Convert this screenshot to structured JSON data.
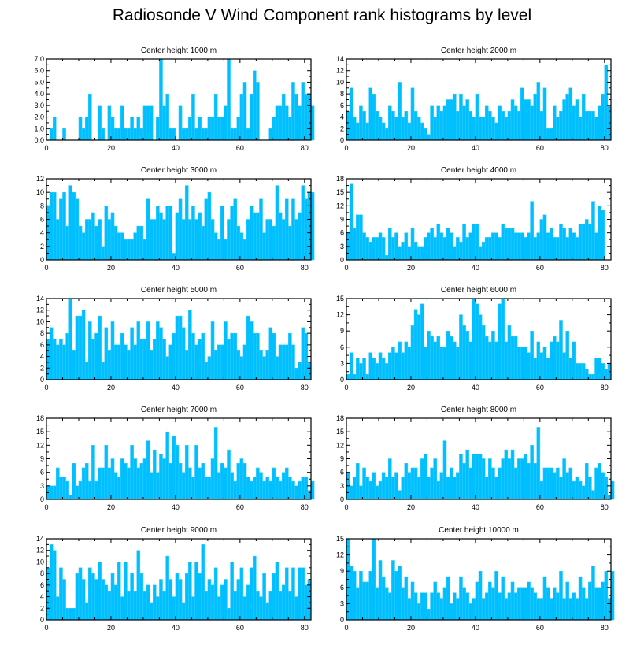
{
  "title": "Radiosonde V Wind Component rank histograms by level",
  "colors": {
    "bar": "#00BFFF",
    "bar_edge": "#33ccff",
    "axis": "#000000",
    "background": "#ffffff"
  },
  "chart_data": [
    {
      "type": "bar",
      "title": "Center height 1000 m",
      "xlim": [
        0,
        82
      ],
      "ylim": [
        0,
        7
      ],
      "xticks": [
        0,
        20,
        40,
        60,
        80
      ],
      "yticks": [
        0.0,
        1.0,
        2.0,
        3.0,
        4.0,
        5.0,
        6.0,
        7.0
      ],
      "ytick_decimals": 1,
      "values": [
        0,
        1,
        2,
        0,
        0,
        1,
        0,
        0,
        0,
        0,
        2,
        1,
        2,
        4,
        0,
        0,
        3,
        1,
        0,
        3,
        2,
        1,
        1,
        3,
        1,
        1,
        2,
        1,
        2,
        1,
        3,
        3,
        3,
        0,
        2,
        7,
        3,
        4,
        1,
        1,
        0,
        3,
        1,
        1,
        2,
        4,
        1,
        2,
        1,
        1,
        2,
        2,
        4,
        2,
        2,
        3,
        7,
        1,
        1,
        2,
        4,
        5,
        1,
        4,
        6,
        5,
        0,
        0,
        0,
        1,
        2,
        3,
        3,
        4,
        3,
        2,
        5,
        4,
        3,
        5,
        4,
        4,
        3
      ]
    },
    {
      "type": "bar",
      "title": "Center height 2000 m",
      "xlim": [
        0,
        82
      ],
      "ylim": [
        0,
        14
      ],
      "xticks": [
        0,
        20,
        40,
        60,
        80
      ],
      "yticks": [
        0,
        2,
        4,
        6,
        8,
        10,
        12,
        14
      ],
      "ytick_decimals": 0,
      "values": [
        5,
        9,
        4,
        3,
        6,
        5,
        3,
        9,
        8,
        5,
        4,
        3,
        2,
        6,
        5,
        4,
        10,
        4,
        5,
        3,
        9,
        5,
        4,
        3,
        2,
        1,
        6,
        4,
        6,
        5,
        6,
        7,
        7,
        8,
        5,
        8,
        6,
        7,
        5,
        4,
        8,
        4,
        4,
        6,
        5,
        4,
        3,
        6,
        5,
        4,
        5,
        7,
        6,
        5,
        9,
        7,
        7,
        6,
        8,
        10,
        5,
        9,
        2,
        2,
        6,
        4,
        5,
        7,
        8,
        9,
        6,
        7,
        4,
        8,
        5,
        5,
        5,
        4,
        6,
        8,
        13,
        6
      ]
    },
    {
      "type": "bar",
      "title": "Center height 3000 m",
      "xlim": [
        0,
        82
      ],
      "ylim": [
        0,
        12
      ],
      "xticks": [
        0,
        20,
        40,
        60,
        80
      ],
      "yticks": [
        0,
        2,
        4,
        6,
        8,
        10,
        12
      ],
      "ytick_decimals": 0,
      "values": [
        8,
        10,
        10,
        6,
        9,
        10,
        5,
        11,
        10,
        9,
        5,
        4,
        6,
        6,
        7,
        5,
        6,
        2,
        8,
        6,
        7,
        5,
        4,
        4,
        3,
        3,
        3,
        4,
        5,
        5,
        3,
        9,
        6,
        6,
        8,
        7,
        6,
        8,
        8,
        1,
        7,
        9,
        6,
        11,
        6,
        8,
        6,
        7,
        5,
        9,
        10,
        6,
        4,
        3,
        8,
        3,
        6,
        8,
        9,
        5,
        4,
        3,
        6,
        8,
        7,
        7,
        9,
        4,
        6,
        6,
        5,
        11,
        7,
        6,
        9,
        5,
        9,
        6,
        7,
        11,
        9,
        10,
        10
      ]
    },
    {
      "type": "bar",
      "title": "Center height 4000 m",
      "xlim": [
        0,
        82
      ],
      "ylim": [
        0,
        18
      ],
      "xticks": [
        0,
        20,
        40,
        60,
        80
      ],
      "yticks": [
        0,
        3,
        6,
        9,
        12,
        15,
        18
      ],
      "ytick_decimals": 0,
      "values": [
        6,
        17,
        7,
        10,
        10,
        6,
        5,
        4,
        5,
        5,
        6,
        5,
        1,
        7,
        5,
        6,
        3,
        4,
        6,
        3,
        7,
        4,
        3,
        3,
        5,
        6,
        7,
        5,
        8,
        6,
        5,
        7,
        6,
        3,
        5,
        4,
        8,
        5,
        6,
        8,
        8,
        3,
        4,
        5,
        5,
        6,
        6,
        5,
        8,
        7,
        7,
        7,
        6,
        6,
        6,
        5,
        6,
        13,
        5,
        6,
        9,
        10,
        6,
        7,
        5,
        5,
        8,
        7,
        5,
        7,
        6,
        5,
        8,
        8,
        9,
        8,
        13,
        6,
        12,
        11
      ]
    },
    {
      "type": "bar",
      "title": "Center height 5000 m",
      "xlim": [
        0,
        82
      ],
      "ylim": [
        0,
        14
      ],
      "xticks": [
        0,
        20,
        40,
        60,
        80
      ],
      "yticks": [
        0,
        2,
        4,
        6,
        8,
        10,
        12,
        14
      ],
      "ytick_decimals": 0,
      "values": [
        7,
        9,
        7,
        6,
        7,
        6,
        8,
        14,
        5,
        11,
        11,
        12,
        3,
        10,
        7,
        8,
        11,
        3,
        9,
        5,
        10,
        6,
        6,
        8,
        6,
        5,
        9,
        6,
        10,
        7,
        7,
        10,
        5,
        7,
        10,
        9,
        7,
        4,
        6,
        8,
        11,
        11,
        9,
        5,
        12,
        8,
        6,
        7,
        8,
        3,
        4,
        10,
        5,
        6,
        6,
        10,
        7,
        8,
        8,
        5,
        4,
        6,
        11,
        10,
        8,
        8,
        5,
        4,
        5,
        9,
        8,
        4,
        6,
        6,
        6,
        8,
        6,
        2,
        3,
        9,
        8,
        3
      ]
    },
    {
      "type": "bar",
      "title": "Center height 6000 m",
      "xlim": [
        0,
        82
      ],
      "ylim": [
        0,
        15
      ],
      "xticks": [
        0,
        20,
        40,
        60,
        80
      ],
      "yticks": [
        0,
        3,
        6,
        9,
        12,
        15
      ],
      "ytick_decimals": 0,
      "values": [
        1,
        5,
        1,
        4,
        3,
        4,
        1,
        5,
        4,
        3,
        5,
        4,
        3,
        5,
        6,
        5,
        7,
        5,
        7,
        6,
        10,
        13,
        12,
        14,
        6,
        9,
        8,
        7,
        8,
        6,
        6,
        9,
        8,
        7,
        6,
        12,
        10,
        9,
        7,
        15,
        14,
        12,
        10,
        8,
        7,
        9,
        7,
        14,
        15,
        7,
        10,
        8,
        8,
        6,
        6,
        6,
        5,
        9,
        4,
        7,
        5,
        6,
        4,
        7,
        8,
        7,
        11,
        5,
        9,
        4,
        7,
        3,
        3,
        3,
        2,
        1,
        1,
        4,
        4,
        3,
        2,
        3
      ]
    },
    {
      "type": "bar",
      "title": "Center height 7000 m",
      "xlim": [
        0,
        82
      ],
      "ylim": [
        0,
        18
      ],
      "xticks": [
        0,
        20,
        40,
        60,
        80
      ],
      "yticks": [
        0,
        3,
        6,
        9,
        12,
        15,
        18
      ],
      "ytick_decimals": 0,
      "values": [
        3,
        3,
        3,
        7,
        5,
        5,
        4,
        1,
        8,
        3,
        4,
        7,
        8,
        4,
        12,
        4,
        7,
        7,
        12,
        7,
        9,
        6,
        5,
        9,
        8,
        7,
        12,
        9,
        7,
        8,
        9,
        13,
        6,
        11,
        6,
        10,
        9,
        15,
        8,
        14,
        12,
        8,
        6,
        12,
        7,
        5,
        12,
        7,
        8,
        5,
        5,
        9,
        16,
        6,
        8,
        7,
        11,
        6,
        4,
        8,
        9,
        8,
        5,
        4,
        5,
        7,
        6,
        4,
        5,
        4,
        7,
        5,
        4,
        6,
        7,
        5,
        4,
        3,
        4,
        5,
        5,
        2,
        4
      ]
    },
    {
      "type": "bar",
      "title": "Center height 8000 m",
      "xlim": [
        0,
        82
      ],
      "ylim": [
        0,
        18
      ],
      "xticks": [
        0,
        20,
        40,
        60,
        80
      ],
      "yticks": [
        0,
        3,
        6,
        9,
        12,
        15,
        18
      ],
      "ytick_decimals": 0,
      "values": [
        6,
        3,
        5,
        8,
        3,
        7,
        5,
        4,
        6,
        3,
        4,
        6,
        5,
        9,
        5,
        6,
        2,
        5,
        8,
        6,
        7,
        7,
        5,
        9,
        10,
        5,
        7,
        9,
        4,
        6,
        13,
        5,
        7,
        5,
        6,
        10,
        8,
        11,
        7,
        10,
        10,
        10,
        9,
        5,
        9,
        7,
        5,
        7,
        9,
        11,
        9,
        11,
        7,
        9,
        9,
        10,
        8,
        12,
        8,
        16,
        4,
        7,
        7,
        7,
        6,
        7,
        5,
        9,
        6,
        7,
        4,
        5,
        4,
        3,
        8,
        5,
        2,
        7,
        8,
        6,
        5,
        1,
        4
      ]
    },
    {
      "type": "bar",
      "title": "Center height 9000 m",
      "xlim": [
        0,
        82
      ],
      "ylim": [
        0,
        14
      ],
      "xticks": [
        0,
        20,
        40,
        60,
        80
      ],
      "yticks": [
        0,
        2,
        4,
        6,
        8,
        10,
        12,
        14
      ],
      "ytick_decimals": 0,
      "values": [
        9,
        13,
        12,
        4,
        9,
        7,
        2,
        2,
        2,
        8,
        9,
        7,
        3,
        9,
        8,
        7,
        10,
        7,
        6,
        5,
        8,
        6,
        10,
        4,
        10,
        5,
        8,
        5,
        12,
        8,
        5,
        6,
        3,
        6,
        4,
        7,
        5,
        11,
        7,
        4,
        8,
        7,
        3,
        8,
        10,
        4,
        10,
        8,
        13,
        5,
        7,
        6,
        9,
        4,
        6,
        7,
        2,
        10,
        5,
        7,
        9,
        4,
        6,
        9,
        11,
        5,
        4,
        8,
        3,
        5,
        8,
        10,
        5,
        6,
        9,
        5,
        9,
        4,
        9,
        9,
        6,
        7
      ]
    },
    {
      "type": "bar",
      "title": "Center height 10000 m",
      "xlim": [
        0,
        82
      ],
      "ylim": [
        0,
        15
      ],
      "xticks": [
        0,
        20,
        40,
        60,
        80
      ],
      "yticks": [
        0,
        3,
        6,
        9,
        12,
        15
      ],
      "ytick_decimals": 0,
      "values": [
        15,
        10,
        9,
        6,
        9,
        7,
        7,
        9,
        15,
        6,
        11,
        8,
        6,
        5,
        11,
        9,
        10,
        6,
        8,
        4,
        7,
        5,
        3,
        5,
        5,
        2,
        5,
        7,
        5,
        4,
        6,
        8,
        3,
        5,
        4,
        8,
        6,
        5,
        3,
        4,
        7,
        9,
        4,
        5,
        7,
        6,
        9,
        5,
        8,
        4,
        5,
        7,
        5,
        6,
        6,
        6,
        7,
        6,
        5,
        4,
        4,
        8,
        6,
        4,
        6,
        5,
        9,
        4,
        7,
        4,
        5,
        4,
        8,
        6,
        4,
        7,
        10,
        6,
        6,
        7,
        9,
        4,
        9
      ]
    }
  ]
}
